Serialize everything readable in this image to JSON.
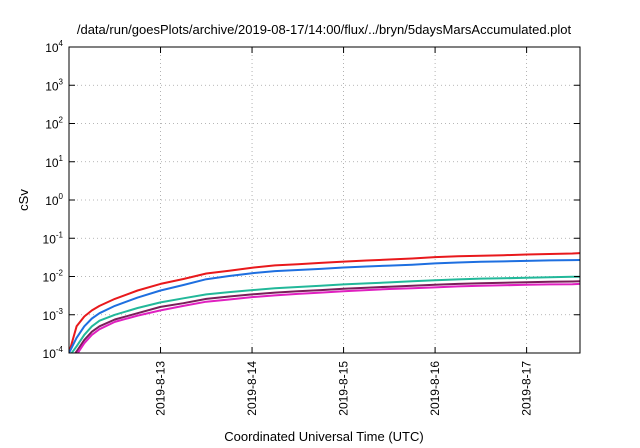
{
  "chart_data": {
    "type": "line",
    "title": "/data/run/goesPlots/archive/2019-08-17/14:00/flux/../bryn/5daysMarsAccumulated.plot",
    "xlabel": "Coordinated Universal Time (UTC)",
    "ylabel": "cSv",
    "y_scale": "log",
    "ylim": [
      0.0001,
      10000
    ],
    "xlim": [
      "2019-08-12T00:00",
      "2019-08-17T14:00"
    ],
    "grid": true,
    "legend": "none",
    "y_ticks": [
      {
        "base": "10",
        "exp": "-4"
      },
      {
        "base": "10",
        "exp": "-3"
      },
      {
        "base": "10",
        "exp": "-2"
      },
      {
        "base": "10",
        "exp": "-1"
      },
      {
        "base": "10",
        "exp": "0"
      },
      {
        "base": "10",
        "exp": "1"
      },
      {
        "base": "10",
        "exp": "2"
      },
      {
        "base": "10",
        "exp": "3"
      },
      {
        "base": "10",
        "exp": "4"
      }
    ],
    "x_ticks": [
      "2019-8-13",
      "2019-8-14",
      "2019-8-15",
      "2019-8-16",
      "2019-8-17"
    ],
    "x": [
      "2019-08-12T00:00",
      "2019-08-12T02:00",
      "2019-08-12T04:00",
      "2019-08-12T06:00",
      "2019-08-12T08:00",
      "2019-08-12T12:00",
      "2019-08-12T18:00",
      "2019-08-13T00:00",
      "2019-08-13T06:00",
      "2019-08-13T12:00",
      "2019-08-13T18:00",
      "2019-08-14T00:00",
      "2019-08-14T06:00",
      "2019-08-14T12:00",
      "2019-08-14T18:00",
      "2019-08-15T00:00",
      "2019-08-15T06:00",
      "2019-08-15T12:00",
      "2019-08-15T18:00",
      "2019-08-16T00:00",
      "2019-08-16T06:00",
      "2019-08-16T12:00",
      "2019-08-16T18:00",
      "2019-08-17T00:00",
      "2019-08-17T06:00",
      "2019-08-17T12:00",
      "2019-08-17T14:00"
    ],
    "series": [
      {
        "color": "#e8191c",
        "values": [
          0.0001,
          0.0005,
          0.0009,
          0.0013,
          0.0017,
          0.0026,
          0.0043,
          0.0064,
          0.0086,
          0.012,
          0.0142,
          0.017,
          0.0195,
          0.021,
          0.0227,
          0.0245,
          0.0262,
          0.0278,
          0.0295,
          0.0322,
          0.0337,
          0.035,
          0.036,
          0.0375,
          0.0388,
          0.04,
          0.041
        ]
      },
      {
        "color": "#1e6fe0",
        "values": null,
        "values2": [
          0.0001,
          0.00025,
          0.0005,
          0.0008,
          0.0011,
          0.0017,
          0.0028,
          0.0043,
          0.006,
          0.0085,
          0.0103,
          0.0122,
          0.0138,
          0.0148,
          0.0158,
          0.0172,
          0.0183,
          0.0193,
          0.0203,
          0.022,
          0.0232,
          0.0242,
          0.0248,
          0.0256,
          0.0263,
          0.0268,
          0.027
        ]
      },
      {
        "color": "#22b89a",
        "values": [
          8e-05,
          0.00015,
          0.0003,
          0.0005,
          0.0007,
          0.001,
          0.0015,
          0.0021,
          0.0027,
          0.0034,
          0.0039,
          0.0044,
          0.0049,
          0.0053,
          0.0057,
          0.0062,
          0.0066,
          0.007,
          0.0075,
          0.008,
          0.0084,
          0.0088,
          0.009,
          0.0093,
          0.0096,
          0.0098,
          0.0099
        ]
      },
      {
        "color": "#7a1e5a",
        "values": [
          6e-05,
          0.00011,
          0.00022,
          0.00036,
          0.0005,
          0.00075,
          0.0011,
          0.0016,
          0.002,
          0.0026,
          0.003,
          0.0034,
          0.0038,
          0.0041,
          0.0044,
          0.0048,
          0.0051,
          0.0054,
          0.0057,
          0.0061,
          0.0064,
          0.0067,
          0.0069,
          0.0071,
          0.0073,
          0.0074,
          0.0075
        ]
      },
      {
        "color": "#e020c0",
        "values": [
          5e-05,
          9e-05,
          0.00018,
          0.0003,
          0.00042,
          0.00065,
          0.00095,
          0.0013,
          0.0017,
          0.0022,
          0.0025,
          0.0029,
          0.0032,
          0.0035,
          0.0038,
          0.0041,
          0.0044,
          0.0047,
          0.0049,
          0.0052,
          0.0055,
          0.0057,
          0.0059,
          0.0061,
          0.0062,
          0.0063,
          0.0064
        ]
      }
    ]
  }
}
